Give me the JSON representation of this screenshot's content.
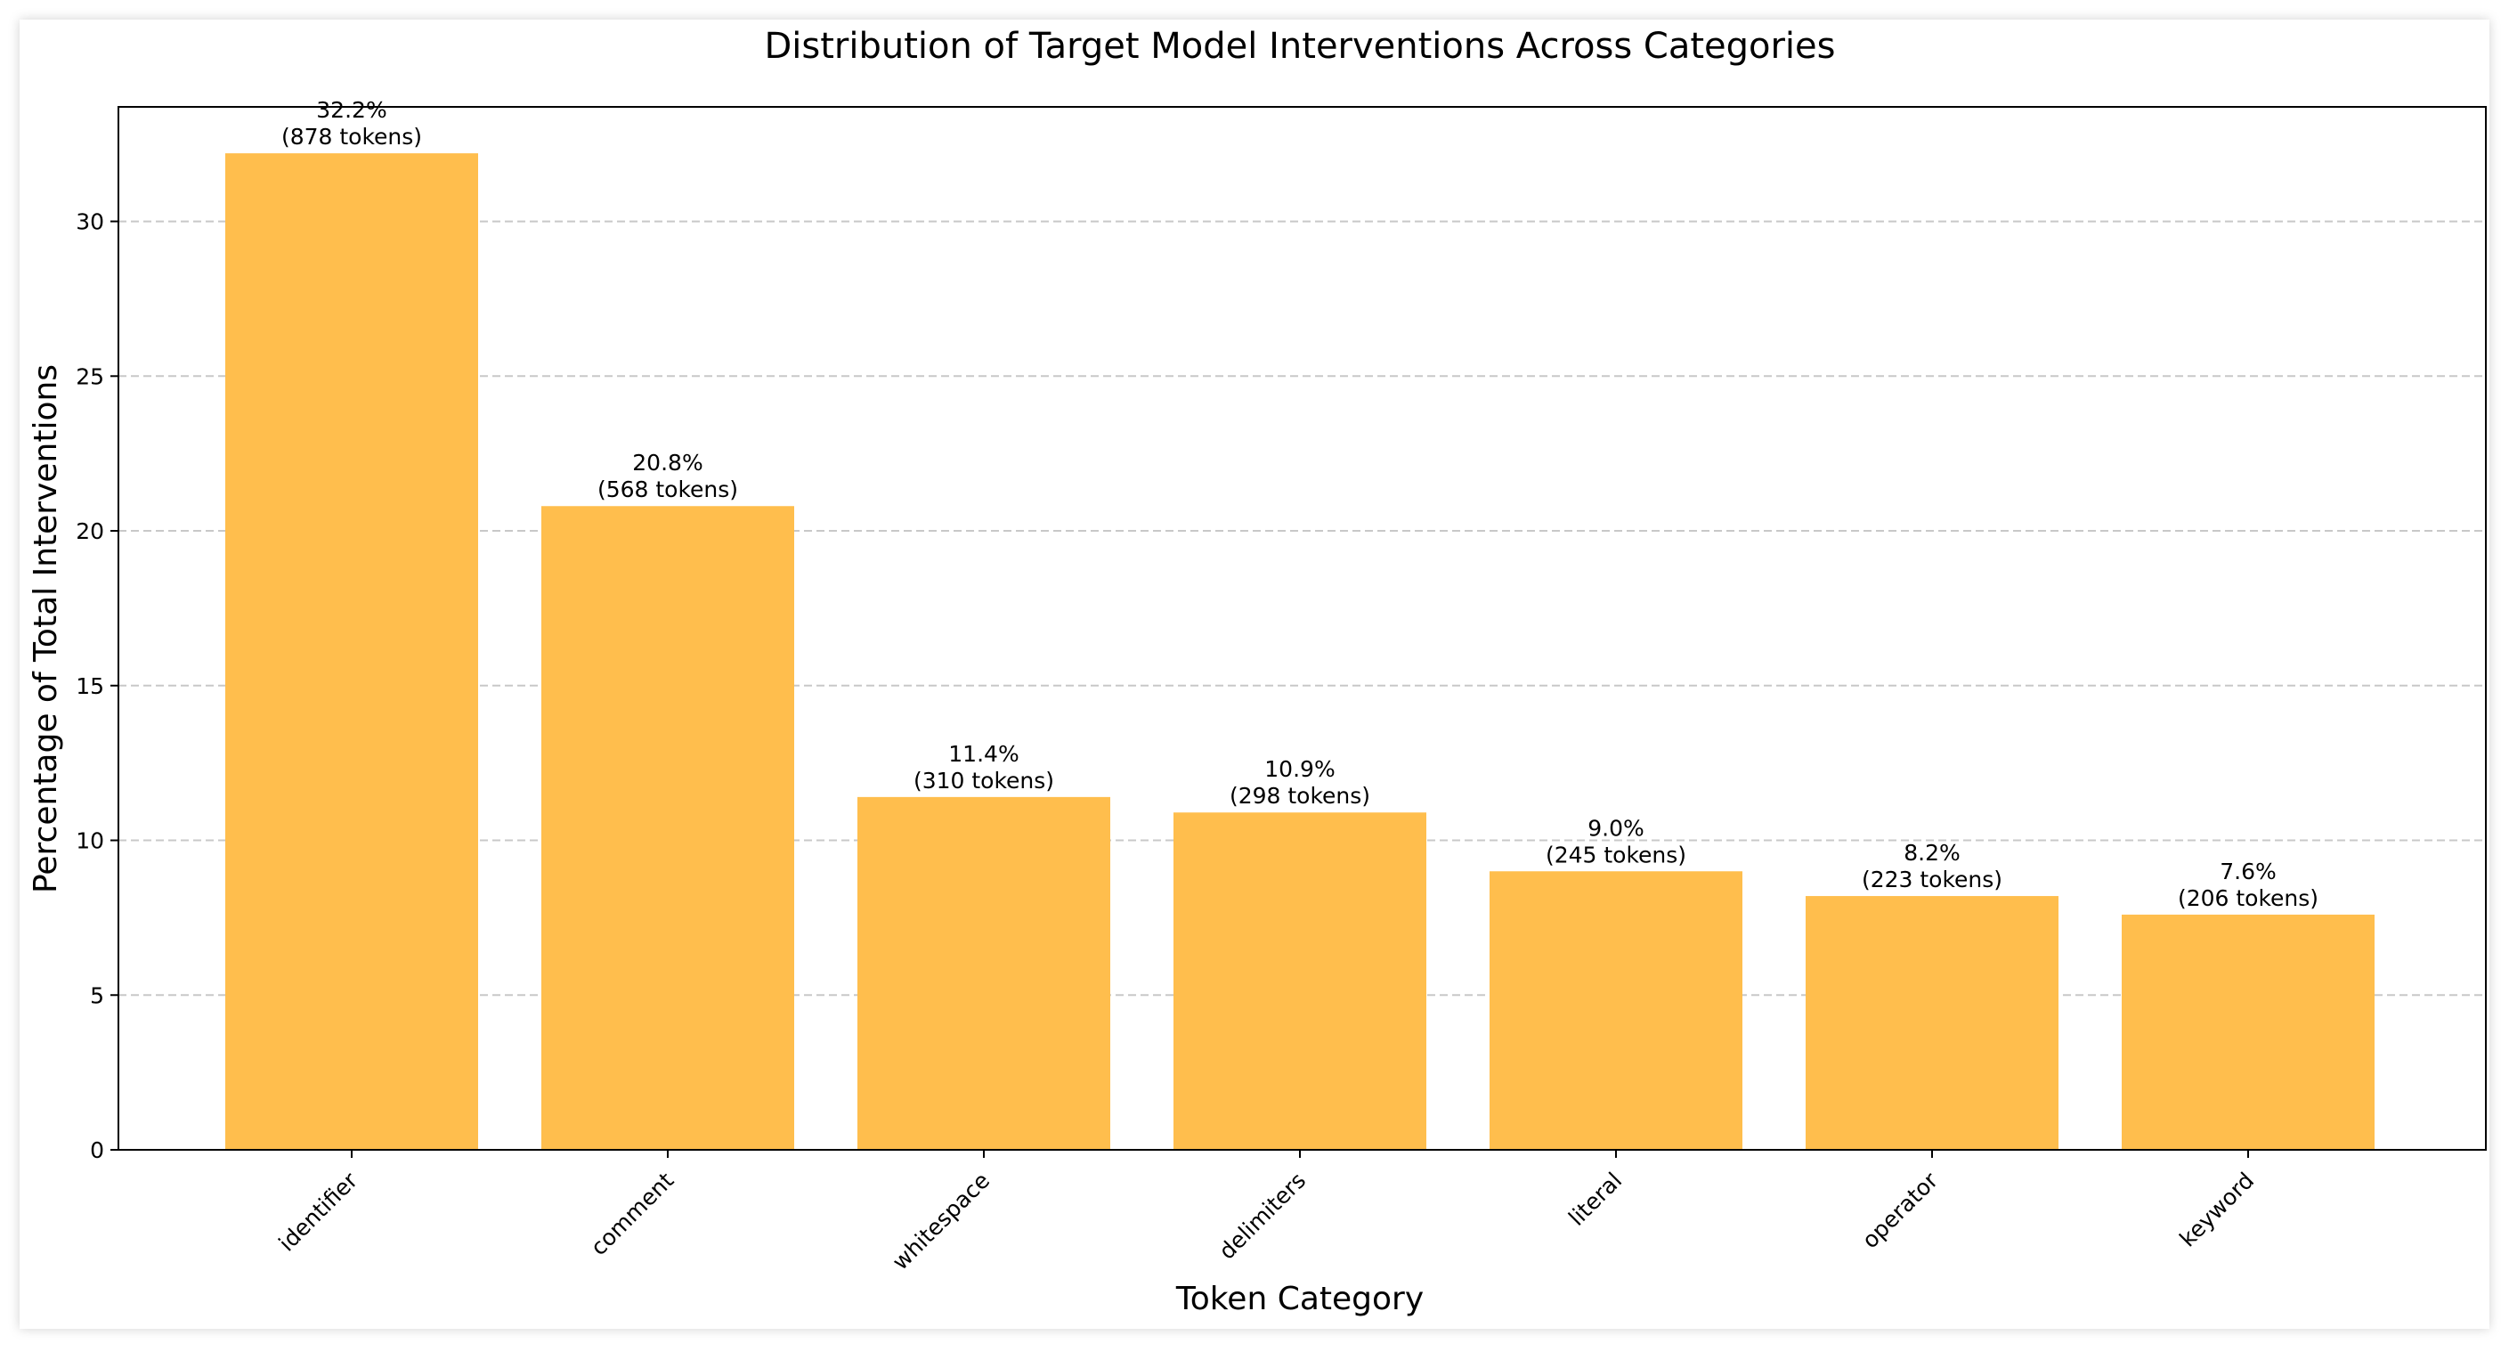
{
  "chart_data": {
    "type": "bar",
    "title": "Distribution of Target Model Interventions Across Categories",
    "xlabel": "Token Category",
    "ylabel": "Percentage of Total Interventions",
    "categories": [
      "identifier",
      "comment",
      "whitespace",
      "delimiters",
      "literal",
      "operator",
      "keyword"
    ],
    "values": [
      32.2,
      20.8,
      11.4,
      10.9,
      9.0,
      8.2,
      7.6
    ],
    "bar_labels": [
      {
        "percent": "32.2%",
        "tokens": "(878 tokens)"
      },
      {
        "percent": "20.8%",
        "tokens": "(568 tokens)"
      },
      {
        "percent": "11.4%",
        "tokens": "(310 tokens)"
      },
      {
        "percent": "10.9%",
        "tokens": "(298 tokens)"
      },
      {
        "percent": "9.0%",
        "tokens": "(245 tokens)"
      },
      {
        "percent": "8.2%",
        "tokens": "(223 tokens)"
      },
      {
        "percent": "7.6%",
        "tokens": "(206 tokens)"
      }
    ],
    "y_ticks": [
      "0",
      "5",
      "10",
      "15",
      "20",
      "25",
      "30"
    ],
    "ylim": [
      0,
      33.7
    ],
    "grid": "horizontal dashed",
    "bar_color": "#ffbe4d",
    "grid_color": "#c8c8c8"
  }
}
